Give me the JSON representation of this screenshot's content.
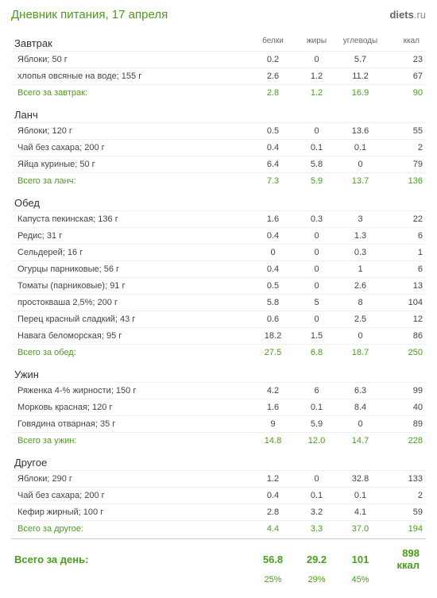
{
  "title": "Дневник питания, 17 апреля",
  "brand_prefix": "diets",
  "brand_suffix": ".ru",
  "headers": {
    "protein": "белки",
    "fat": "жиры",
    "carbs": "углеводы",
    "kcal": "ккал"
  },
  "meals": [
    {
      "name": "Завтрак",
      "items": [
        {
          "name": "Яблоки; 50 г",
          "p": "0.2",
          "f": "0",
          "c": "5.7",
          "k": "23"
        },
        {
          "name": "хлопья овсяные на воде; 155 г",
          "p": "2.6",
          "f": "1.2",
          "c": "11.2",
          "k": "67"
        }
      ],
      "total_label": "Всего за завтрак:",
      "total": {
        "p": "2.8",
        "f": "1.2",
        "c": "16.9",
        "k": "90"
      }
    },
    {
      "name": "Ланч",
      "items": [
        {
          "name": "Яблоки; 120 г",
          "p": "0.5",
          "f": "0",
          "c": "13.6",
          "k": "55"
        },
        {
          "name": "Чай без сахара; 200 г",
          "p": "0.4",
          "f": "0.1",
          "c": "0.1",
          "k": "2"
        },
        {
          "name": "Яйца куриные; 50 г",
          "p": "6.4",
          "f": "5.8",
          "c": "0",
          "k": "79"
        }
      ],
      "total_label": "Всего за ланч:",
      "total": {
        "p": "7.3",
        "f": "5.9",
        "c": "13.7",
        "k": "136"
      }
    },
    {
      "name": "Обед",
      "items": [
        {
          "name": "Капуста пекинская; 136 г",
          "p": "1.6",
          "f": "0.3",
          "c": "3",
          "k": "22"
        },
        {
          "name": "Редис; 31 г",
          "p": "0.4",
          "f": "0",
          "c": "1.3",
          "k": "6"
        },
        {
          "name": "Сельдерей; 16 г",
          "p": "0",
          "f": "0",
          "c": "0.3",
          "k": "1"
        },
        {
          "name": "Огурцы парниковые; 56 г",
          "p": "0.4",
          "f": "0",
          "c": "1",
          "k": "6"
        },
        {
          "name": "Томаты (парниковые); 91 г",
          "p": "0.5",
          "f": "0",
          "c": "2.6",
          "k": "13"
        },
        {
          "name": "простокваша 2,5%; 200 г",
          "p": "5.8",
          "f": "5",
          "c": "8",
          "k": "104"
        },
        {
          "name": "Перец красный сладкий; 43 г",
          "p": "0.6",
          "f": "0",
          "c": "2.5",
          "k": "12"
        },
        {
          "name": "Навага беломорская; 95 г",
          "p": "18.2",
          "f": "1.5",
          "c": "0",
          "k": "86"
        }
      ],
      "total_label": "Всего за обед:",
      "total": {
        "p": "27.5",
        "f": "6.8",
        "c": "18.7",
        "k": "250"
      }
    },
    {
      "name": "Ужин",
      "items": [
        {
          "name": "Ряженка 4-% жирности; 150 г",
          "p": "4.2",
          "f": "6",
          "c": "6.3",
          "k": "99"
        },
        {
          "name": "Морковь красная; 120 г",
          "p": "1.6",
          "f": "0.1",
          "c": "8.4",
          "k": "40"
        },
        {
          "name": "Говядина отварная; 35 г",
          "p": "9",
          "f": "5.9",
          "c": "0",
          "k": "89"
        }
      ],
      "total_label": "Всего за ужин:",
      "total": {
        "p": "14.8",
        "f": "12.0",
        "c": "14.7",
        "k": "228"
      }
    },
    {
      "name": "Другое",
      "items": [
        {
          "name": "Яблоки; 290 г",
          "p": "1.2",
          "f": "0",
          "c": "32.8",
          "k": "133"
        },
        {
          "name": "Чай без сахара; 200 г",
          "p": "0.4",
          "f": "0.1",
          "c": "0.1",
          "k": "2"
        },
        {
          "name": "Кефир жирный; 100 г",
          "p": "2.8",
          "f": "3.2",
          "c": "4.1",
          "k": "59"
        }
      ],
      "total_label": "Всего за другое:",
      "total": {
        "p": "4.4",
        "f": "3.3",
        "c": "37.0",
        "k": "194"
      }
    }
  ],
  "day_total": {
    "label": "Всего за день:",
    "p": "56.8",
    "f": "29.2",
    "c": "101",
    "k": "898 ккал",
    "p_pct": "25%",
    "f_pct": "29%",
    "c_pct": "45%"
  }
}
